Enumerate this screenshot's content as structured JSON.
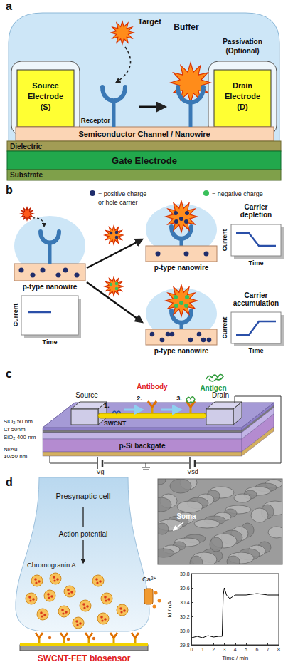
{
  "panels": {
    "a": {
      "label": "a",
      "target": "Target",
      "buffer": "Buffer",
      "passivation": [
        "Passivation",
        "(Optional)"
      ],
      "source": [
        "Source",
        "Electrode",
        "(S)"
      ],
      "drain": [
        "Drain",
        "Electrode",
        "(D)"
      ],
      "receptor": "Receptor",
      "channel": "Semiconductor Channel / Nanowire",
      "dielectric": "Dielectric",
      "gate": "Gate Electrode",
      "substrate": "Substrate"
    },
    "b": {
      "label": "b",
      "legend_positive": [
        "= positive charge",
        "or hole carrier"
      ],
      "legend_negative": [
        "= negative charge"
      ],
      "nanowire": "p-type nanowire",
      "current": "Current",
      "time": "Time",
      "depletion": [
        "Carrier",
        "depletion"
      ],
      "accumulation": [
        "Carrier",
        "accumulation"
      ]
    },
    "c": {
      "label": "c",
      "antibody": "Antibody",
      "antigen": "Antigen",
      "steps": [
        "1.",
        "2.",
        "3."
      ],
      "source": "Source",
      "drain": "Drain",
      "layers": [
        "SiO₂ 50 nm",
        "Cr 50nm",
        "SiO₂ 400 nm",
        "Ni/Au",
        "10/50 nm"
      ],
      "swcnt": "SWCNT",
      "backgate": "p-Si backgate",
      "vg": "Vg",
      "vsd": "Vsd"
    },
    "d": {
      "label": "d",
      "cell": "Presynaptic cell",
      "action": "Action potential",
      "chromogranin": "Chromogranin A",
      "calcium": "Ca²⁺",
      "sensor": "SWCNT-FET biosensor",
      "soma": "Soma"
    }
  },
  "chart_data": {
    "type": "line",
    "color": "#000000",
    "grid": false,
    "x_label": "Time / min",
    "y_label": "Id / nA",
    "x": [
      0,
      0.5,
      1,
      1.5,
      2,
      2.5,
      2.8,
      2.9,
      3.0,
      3.2,
      3.5,
      4,
      5,
      6,
      7,
      8
    ],
    "values": [
      29.9,
      29.92,
      29.9,
      29.93,
      29.91,
      29.92,
      29.92,
      30.5,
      30.6,
      30.5,
      30.45,
      30.5,
      30.5,
      30.52,
      30.5,
      30.5
    ],
    "xlim": [
      0,
      8
    ],
    "xticks": [
      0,
      1,
      2,
      3,
      4,
      5,
      6,
      7,
      8
    ],
    "ylim": [
      29.8,
      30.8
    ],
    "yticks": [
      29.8,
      {
        "value": 30,
        "label": "30.0"
      },
      30.2,
      30.4,
      30.6,
      30.8
    ]
  }
}
